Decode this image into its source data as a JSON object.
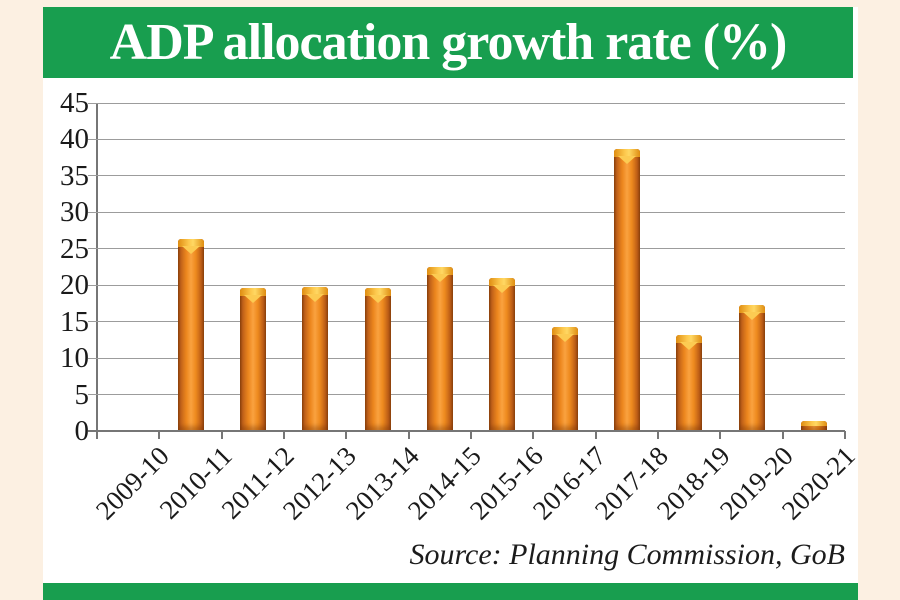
{
  "page": {
    "background_color": "#fcf0e2",
    "accent_green": "#189e4f",
    "panel_color": "#ffffff"
  },
  "header": {
    "title": "ADP allocation growth rate (%)"
  },
  "source_note": "Source: Planning Commission, GoB",
  "chart_data": {
    "type": "bar",
    "title": "ADP allocation growth rate (%)",
    "categories": [
      "2009-10",
      "2010-11",
      "2011-12",
      "2012-13",
      "2013-14",
      "2014-15",
      "2015-16",
      "2016-17",
      "2017-18",
      "2018-19",
      "2019-20",
      "2020-21"
    ],
    "values": [
      0,
      26.2,
      19.5,
      19.6,
      19.5,
      22.4,
      20.8,
      14.2,
      38.6,
      13.0,
      17.2,
      1.2
    ],
    "xlabel": "",
    "ylabel": "",
    "ylim": [
      0,
      45
    ],
    "yticks": [
      0,
      5,
      10,
      15,
      20,
      25,
      30,
      35,
      40,
      45
    ],
    "grid": true,
    "legend": "none",
    "x_tick_label_rotation_deg": -45,
    "bar_face_color": "#ee8a1e",
    "bar_edge_color": "#8f430d",
    "bar_cap_color": "#fdc94e",
    "gridline_color": "#9c9c9c",
    "axis_color": "#767676",
    "label_color": "#1a1a1a"
  }
}
